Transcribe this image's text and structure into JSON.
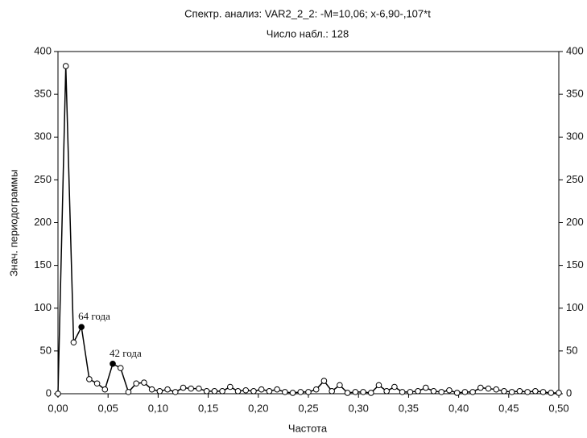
{
  "chart_data": {
    "type": "line",
    "title": "Спектр. анализ: VAR2_2_2: -M=10,06; x-6,90-,107*t",
    "subtitle": "Число набл.: 128",
    "xlabel": "Частота",
    "ylabel": "Знач. периодограммы",
    "x": [
      0,
      0.0078125,
      0.015625,
      0.0234375,
      0.03125,
      0.0390625,
      0.046875,
      0.0546875,
      0.0625,
      0.0703125,
      0.078125,
      0.0859375,
      0.09375,
      0.1015625,
      0.109375,
      0.1171875,
      0.125,
      0.1328125,
      0.140625,
      0.1484375,
      0.15625,
      0.1640625,
      0.171875,
      0.1796875,
      0.1875,
      0.1953125,
      0.203125,
      0.2109375,
      0.21875,
      0.2265625,
      0.234375,
      0.2421875,
      0.25,
      0.2578125,
      0.265625,
      0.2734375,
      0.28125,
      0.2890625,
      0.296875,
      0.3046875,
      0.3125,
      0.3203125,
      0.328125,
      0.3359375,
      0.34375,
      0.3515625,
      0.359375,
      0.3671875,
      0.375,
      0.3828125,
      0.390625,
      0.3984375,
      0.40625,
      0.4140625,
      0.421875,
      0.4296875,
      0.4375,
      0.4453125,
      0.453125,
      0.4609375,
      0.46875,
      0.4765625,
      0.484375,
      0.4921875,
      0.5
    ],
    "series": [
      {
        "color": "#000000",
        "values": [
          0,
          383,
          60,
          78,
          17,
          12,
          5,
          35,
          30,
          2,
          12,
          13,
          5,
          3,
          5,
          2,
          7,
          6,
          6,
          3,
          3,
          3,
          8,
          3,
          4,
          3,
          5,
          3,
          5,
          2,
          1,
          2,
          2,
          5,
          15,
          3,
          10,
          1,
          2,
          2,
          1,
          10,
          3,
          8,
          2,
          2,
          3,
          7,
          3,
          2,
          4,
          1,
          2,
          2,
          7,
          6,
          5,
          3,
          2,
          3,
          2,
          3,
          2,
          1,
          1
        ]
      }
    ],
    "annotations": [
      {
        "text": "64 года",
        "x": 0.0234375,
        "y": 78
      },
      {
        "text": "42 года",
        "x": 0.0546875,
        "y": 35
      }
    ],
    "xlim": [
      0,
      0.5
    ],
    "xticks": [
      {
        "value": 0,
        "label": "0,00"
      },
      {
        "value": 0.05,
        "label": "0,05"
      },
      {
        "value": 0.1,
        "label": "0,10"
      },
      {
        "value": 0.15,
        "label": "0,15"
      },
      {
        "value": 0.2,
        "label": "0,20"
      },
      {
        "value": 0.25,
        "label": "0,25"
      },
      {
        "value": 0.3,
        "label": "0,30"
      },
      {
        "value": 0.35,
        "label": "0,35"
      },
      {
        "value": 0.4,
        "label": "0,40"
      },
      {
        "value": 0.45,
        "label": "0,45"
      },
      {
        "value": 0.5,
        "label": "0,50"
      }
    ],
    "ylim": [
      0,
      400
    ],
    "yticks": [
      0,
      50,
      100,
      150,
      200,
      250,
      300,
      350,
      400
    ],
    "y2lim": [
      0,
      400
    ],
    "y2ticks": [
      0,
      50,
      100,
      150,
      200,
      250,
      300,
      350,
      400
    ],
    "grid": false
  }
}
